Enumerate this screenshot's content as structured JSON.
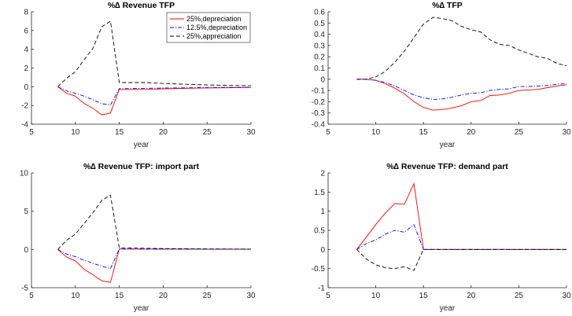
{
  "chart_data": [
    {
      "type": "line",
      "title": "%∆ Revenue TFP",
      "xlabel": "year",
      "ylabel": "",
      "xlim": [
        5,
        30
      ],
      "ylim": [
        -4,
        8
      ],
      "xticks": [
        5,
        10,
        15,
        20,
        25,
        30
      ],
      "yticks": [
        -4,
        -2,
        0,
        2,
        4,
        6,
        8
      ],
      "grid": false,
      "legend": "top-right",
      "series": [
        {
          "name": "25%,depreciation",
          "color": "#ff0000",
          "dash": "solid",
          "x": [
            8,
            9,
            10,
            11,
            12,
            13,
            14,
            15,
            16,
            18,
            20,
            22,
            24,
            26,
            28,
            30
          ],
          "y": [
            0,
            -0.7,
            -1.0,
            -1.8,
            -2.3,
            -3.0,
            -2.8,
            -0.3,
            -0.3,
            -0.28,
            -0.22,
            -0.18,
            -0.15,
            -0.12,
            -0.1,
            -0.08
          ]
        },
        {
          "name": "12.5%,depreciation",
          "color": "#0000ff",
          "dash": "dashdot",
          "x": [
            8,
            9,
            10,
            11,
            12,
            13,
            14,
            15,
            16,
            18,
            20,
            22,
            24,
            26,
            28,
            30
          ],
          "y": [
            0,
            -0.45,
            -0.7,
            -1.0,
            -1.4,
            -1.8,
            -1.95,
            -0.2,
            -0.2,
            -0.17,
            -0.14,
            -0.12,
            -0.1,
            -0.09,
            -0.07,
            -0.06
          ]
        },
        {
          "name": "25%,appreciation",
          "color": "#000000",
          "dash": "dashed",
          "x": [
            8,
            9,
            10,
            11,
            12,
            13,
            14,
            15,
            16,
            18,
            20,
            22,
            24,
            26,
            28,
            30
          ],
          "y": [
            0,
            0.9,
            1.6,
            2.9,
            4.1,
            6.4,
            7.0,
            0.45,
            0.45,
            0.45,
            0.35,
            0.28,
            0.22,
            0.17,
            0.13,
            0.1
          ]
        }
      ]
    },
    {
      "type": "line",
      "title": "%∆ TFP",
      "xlabel": "year",
      "ylabel": "",
      "xlim": [
        5,
        30
      ],
      "ylim": [
        -0.4,
        0.6
      ],
      "xticks": [
        5,
        10,
        15,
        20,
        25,
        30
      ],
      "yticks": [
        -0.4,
        -0.3,
        -0.2,
        -0.1,
        0,
        0.1,
        0.2,
        0.3,
        0.4,
        0.5,
        0.6
      ],
      "grid": false,
      "series": [
        {
          "name": "25%,depreciation",
          "color": "#ff0000",
          "dash": "solid",
          "x": [
            8,
            9,
            10,
            11,
            12,
            13,
            14,
            15,
            16,
            17,
            18,
            19,
            20,
            21,
            22,
            23,
            24,
            25,
            26,
            27,
            28,
            29,
            30
          ],
          "y": [
            0,
            0,
            -0.01,
            -0.04,
            -0.08,
            -0.13,
            -0.2,
            -0.25,
            -0.275,
            -0.27,
            -0.255,
            -0.235,
            -0.2,
            -0.19,
            -0.145,
            -0.14,
            -0.125,
            -0.1,
            -0.095,
            -0.09,
            -0.075,
            -0.06,
            -0.05
          ]
        },
        {
          "name": "12.5%,depreciation",
          "color": "#0000ff",
          "dash": "dashdot",
          "x": [
            8,
            9,
            10,
            11,
            12,
            13,
            14,
            15,
            16,
            17,
            18,
            19,
            20,
            21,
            22,
            23,
            24,
            25,
            26,
            27,
            28,
            29,
            30
          ],
          "y": [
            0,
            0,
            -0.01,
            -0.03,
            -0.06,
            -0.1,
            -0.14,
            -0.165,
            -0.18,
            -0.175,
            -0.16,
            -0.14,
            -0.125,
            -0.12,
            -0.1,
            -0.09,
            -0.085,
            -0.065,
            -0.065,
            -0.06,
            -0.055,
            -0.045,
            -0.04
          ]
        },
        {
          "name": "25%,appreciation",
          "color": "#000000",
          "dash": "dashed",
          "x": [
            8,
            9,
            10,
            11,
            12,
            13,
            14,
            15,
            16,
            17,
            18,
            19,
            20,
            21,
            22,
            23,
            24,
            25,
            26,
            27,
            28,
            29,
            30
          ],
          "y": [
            0,
            0,
            0.02,
            0.07,
            0.15,
            0.25,
            0.37,
            0.49,
            0.55,
            0.54,
            0.52,
            0.47,
            0.44,
            0.42,
            0.35,
            0.31,
            0.3,
            0.26,
            0.23,
            0.2,
            0.185,
            0.14,
            0.12
          ]
        }
      ]
    },
    {
      "type": "line",
      "title": "%∆ Revenue TFP: import part",
      "xlabel": "year",
      "ylabel": "",
      "xlim": [
        5,
        30
      ],
      "ylim": [
        -5,
        10
      ],
      "xticks": [
        5,
        10,
        15,
        20,
        25,
        30
      ],
      "yticks": [
        -5,
        0,
        5,
        10
      ],
      "grid": false,
      "series": [
        {
          "name": "25%,depreciation",
          "color": "#ff0000",
          "dash": "solid",
          "x": [
            8,
            9,
            10,
            11,
            12,
            13,
            14,
            15,
            16,
            18,
            20,
            22,
            24,
            26,
            28,
            30
          ],
          "y": [
            0,
            -1.0,
            -1.5,
            -2.6,
            -3.3,
            -4.1,
            -4.3,
            0.05,
            0.05,
            0.05,
            0.05,
            0.05,
            0.04,
            0.03,
            0.03,
            0.02
          ]
        },
        {
          "name": "12.5%,depreciation",
          "color": "#0000ff",
          "dash": "dashdot",
          "x": [
            8,
            9,
            10,
            11,
            12,
            13,
            14,
            15,
            16,
            18,
            20,
            22,
            24,
            26,
            28,
            30
          ],
          "y": [
            0,
            -0.6,
            -0.95,
            -1.4,
            -1.8,
            -2.2,
            -2.5,
            0.05,
            0.05,
            0.04,
            0.04,
            0.03,
            0.03,
            0.02,
            0.02,
            0.02
          ]
        },
        {
          "name": "25%,appreciation",
          "color": "#000000",
          "dash": "dashed",
          "x": [
            8,
            9,
            10,
            11,
            12,
            13,
            14,
            15,
            16,
            18,
            20,
            22,
            24,
            26,
            28,
            30
          ],
          "y": [
            0,
            1.2,
            2.0,
            3.4,
            4.8,
            6.4,
            7.1,
            0.2,
            0.2,
            0.15,
            0.12,
            0.1,
            0.08,
            0.06,
            0.05,
            0.04
          ]
        }
      ]
    },
    {
      "type": "line",
      "title": "%∆ Revenue TFP: demand part",
      "xlabel": "year",
      "ylabel": "",
      "xlim": [
        5,
        30
      ],
      "ylim": [
        -1,
        2
      ],
      "xticks": [
        5,
        10,
        15,
        20,
        25,
        30
      ],
      "yticks": [
        -1,
        -0.5,
        0,
        0.5,
        1,
        1.5,
        2
      ],
      "grid": false,
      "series": [
        {
          "name": "25%,depreciation",
          "color": "#ff0000",
          "dash": "solid",
          "x": [
            8,
            9,
            10,
            11,
            12,
            13,
            14,
            15,
            16,
            18,
            20,
            22,
            24,
            26,
            28,
            30
          ],
          "y": [
            0,
            0.32,
            0.65,
            0.95,
            1.2,
            1.18,
            1.72,
            0,
            0,
            0,
            0,
            0,
            0,
            0,
            0,
            0
          ]
        },
        {
          "name": "12.5%,depreciation",
          "color": "#0000ff",
          "dash": "dashdot",
          "x": [
            8,
            9,
            10,
            11,
            12,
            13,
            14,
            15,
            16,
            18,
            20,
            22,
            24,
            26,
            28,
            30
          ],
          "y": [
            0,
            0.15,
            0.25,
            0.4,
            0.5,
            0.45,
            0.65,
            0,
            0,
            0,
            0,
            0,
            0,
            0,
            0,
            0
          ]
        },
        {
          "name": "25%,appreciation",
          "color": "#000000",
          "dash": "dashed",
          "x": [
            8,
            9,
            10,
            11,
            12,
            13,
            14,
            15,
            16,
            18,
            20,
            22,
            24,
            26,
            28,
            30
          ],
          "y": [
            0,
            -0.25,
            -0.4,
            -0.48,
            -0.5,
            -0.45,
            -0.55,
            0,
            0,
            0,
            0,
            0,
            0,
            0,
            0,
            0
          ]
        }
      ]
    }
  ]
}
